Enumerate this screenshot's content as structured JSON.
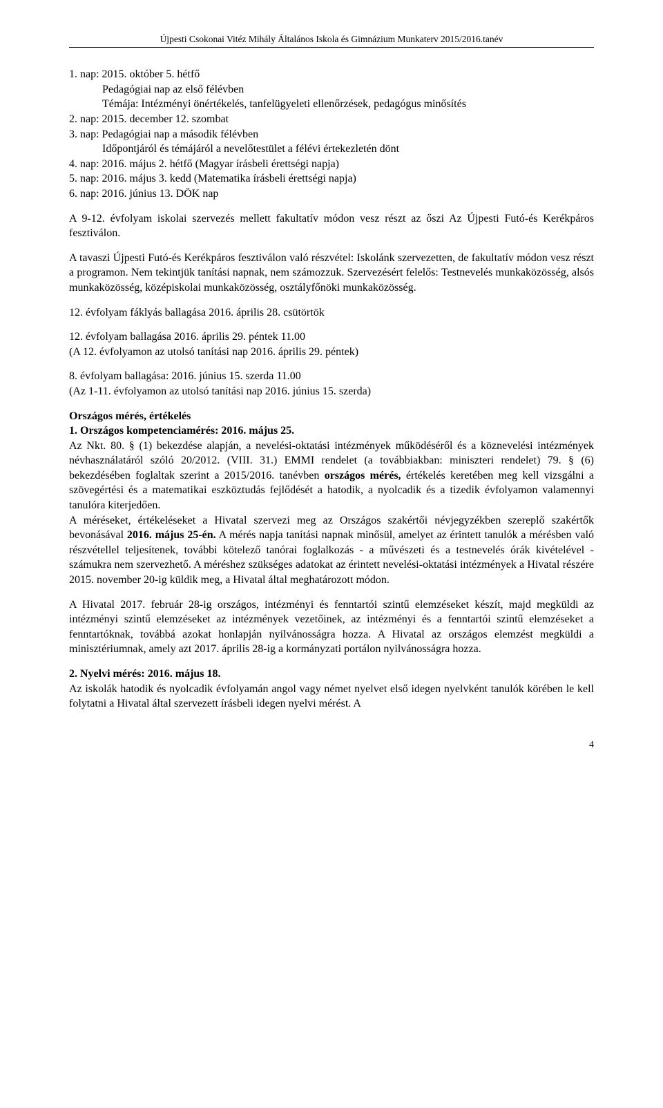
{
  "header": "Újpesti Csokonai Vitéz Mihály Általános Iskola és Gimnázium Munkaterv 2015/2016.tanév",
  "block1": {
    "l1": "1. nap: 2015. október 5. hétfő",
    "l2": "Pedagógiai nap az első félévben",
    "l3": "Témája: Intézményi önértékelés, tanfelügyeleti ellenőrzések, pedagógus minősítés",
    "l4": "2. nap: 2015. december 12. szombat",
    "l5": "3. nap: Pedagógiai nap a második félévben",
    "l6": "Időpontjáról és témájáról a nevelőtestület a félévi értekezletén dönt",
    "l7": "4. nap: 2016. május 2. hétfő (Magyar írásbeli érettségi napja)",
    "l8": "5. nap: 2016. május 3. kedd (Matematika írásbeli érettségi napja)",
    "l9": "6. nap: 2016. június 13. DÖK nap"
  },
  "p2": "A 9-12. évfolyam iskolai szervezés mellett fakultatív módon vesz részt az őszi Az Újpesti Futó-és Kerékpáros fesztiválon.",
  "p3": "A tavaszi Újpesti Futó-és Kerékpáros fesztiválon való részvétel: Iskolánk szervezetten, de fakultatív módon vesz részt a programon. Nem tekintjük tanítási napnak, nem számozzuk. Szervezésért felelős: Testnevelés munkaközösség, alsós munkaközösség, középiskolai munkaközösség, osztályfőnöki munkaközösség.",
  "p4": "12. évfolyam fáklyás ballagása 2016. április 28. csütörtök",
  "p5a": "12. évfolyam ballagása 2016. április 29. péntek 11.00",
  "p5b": "(A 12. évfolyamon az utolsó tanítási nap 2016. április 29. péntek)",
  "p6a": "8. évfolyam ballagása: 2016. június 15. szerda 11.00",
  "p6b": "(Az 1-11. évfolyamon az utolsó tanítási nap 2016. június 15. szerda)",
  "meres": {
    "title1": "Országos mérés, értékelés",
    "title2": "1. Országos kompetenciamérés: 2016. május 25.",
    "body1a": "Az Nkt. 80. § (1) bekezdése alapján, a nevelési-oktatási intézmények működéséről és a köznevelési intézmények névhasználatáról szóló 20/2012. (VIII. 31.) EMMI rendelet (a továbbiakban: miniszteri rendelet) 79. § (6) bekezdésében foglaltak szerint a 2015/2016. tanévben ",
    "body1b": "országos mérés,",
    "body1c": " értékelés keretében meg kell vizsgálni a szövegértési és a matematikai eszköztudás fejlődését a hatodik, a nyolcadik és a tizedik évfolyamon valamennyi tanulóra kiterjedően.",
    "body2a": "A méréseket, értékeléseket a Hivatal szervezi meg az Országos szakértői névjegyzékben szereplő szakértők bevonásával ",
    "body2b": "2016. május 25-én.",
    "body2c": " A mérés napja tanítási napnak minősül, amelyet az érintett tanulók a mérésben való részvétellel teljesítenek, további kötelező tanórai foglalkozás - a művészeti és a testnevelés órák kivételével - számukra nem szervezhető. A méréshez szükséges adatokat az érintett nevelési-oktatási intézmények a Hivatal részére 2015. november 20-ig küldik meg, a Hivatal által meghatározott módon."
  },
  "p_hivatal": "A Hivatal 2017. február 28-ig országos, intézményi és fenntartói szintű elemzéseket készít, majd megküldi az intézményi szintű elemzéseket az intézmények vezetőinek, az intézményi és a fenntartói szintű elemzéseket a fenntartóknak, továbbá azokat honlapján nyilvánosságra hozza. A Hivatal az országos elemzést megküldi a minisztériumnak, amely azt 2017. április 28-ig a kormányzati portálon nyilvánosságra hozza.",
  "nyelvi": {
    "title": "2. Nyelvi mérés: 2016. május 18.",
    "body": "Az iskolák hatodik és nyolcadik évfolyamán angol vagy német nyelvet első idegen nyelvként tanulók körében le kell folytatni a Hivatal által szervezett írásbeli idegen nyelvi mérést. A"
  },
  "page_number": "4"
}
